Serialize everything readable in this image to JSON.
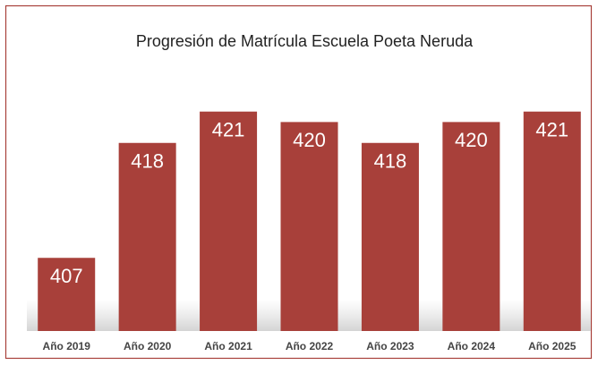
{
  "chart_data": {
    "type": "bar",
    "title": "Progresión de Matrícula Escuela Poeta Neruda",
    "categories": [
      "Año 2019",
      "Año 2020",
      "Año 2021",
      "Año 2022",
      "Año 2023",
      "Año 2024",
      "Año 2025"
    ],
    "values": [
      407,
      418,
      421,
      420,
      418,
      420,
      421
    ],
    "color": "#a8403a",
    "ylim": [
      400,
      425
    ]
  }
}
